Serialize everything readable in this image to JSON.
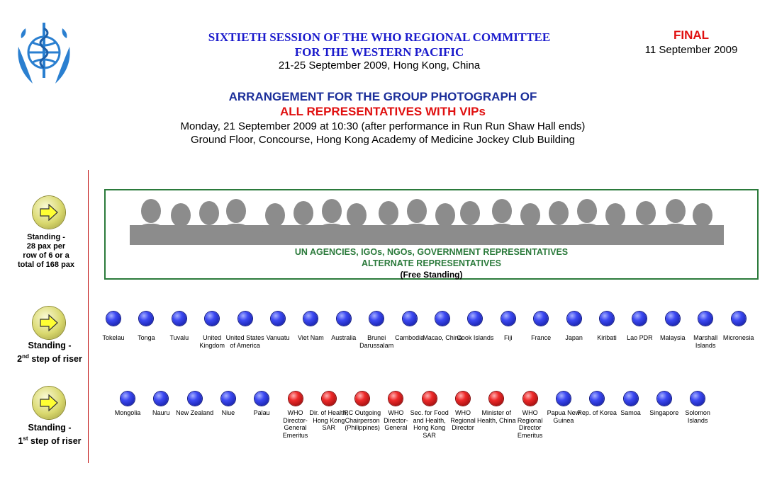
{
  "header": {
    "committee_line1": "SIXTIETH SESSION OF THE WHO REGIONAL COMMITTEE",
    "committee_line2": "FOR THE WESTERN PACIFIC",
    "dates": "21-25 September 2009, Hong Kong, China",
    "final_label": "FINAL",
    "final_date": "11 September 2009"
  },
  "arrangement": {
    "title": "ARRANGEMENT FOR THE GROUP PHOTOGRAPH OF",
    "subtitle": "ALL REPRESENTATIVES WITH VIPs",
    "event_line1": "Monday, 21 September 2009 at 10:30 (after performance in Run Run Shaw Hall ends)",
    "event_line2": "Ground Floor, Concourse, Hong Kong Academy of Medicine Jockey Club Building"
  },
  "colors": {
    "committee_blue": "#1a1acc",
    "title_navy": "#1c2f9a",
    "red": "#e01010",
    "green": "#2b7a3b",
    "country_dot": "#2a36e0",
    "vip_dot": "#e02020"
  },
  "rows": {
    "free_standing": {
      "label_line1": "Standing -",
      "label_line2": "28 pax per",
      "label_line3": "row of 6 or a",
      "label_line4": "total of 168 pax",
      "box_line1": "UN AGENCIES, IGOs, NGOs, GOVERNMENT REPRESENTATIVES",
      "box_line2": "ALTERNATE REPRESENTATIVES",
      "box_line3": "(Free Standing)"
    },
    "second_step": {
      "label_line1": "Standing -",
      "label_step": "2",
      "label_sup": "nd",
      "label_rest": " step of riser",
      "people": [
        {
          "name": "Tokelau",
          "type": "country"
        },
        {
          "name": "Tonga",
          "type": "country"
        },
        {
          "name": "Tuvalu",
          "type": "country"
        },
        {
          "name": "United Kingdom",
          "type": "country"
        },
        {
          "name": "United States of America",
          "type": "country"
        },
        {
          "name": "Vanuatu",
          "type": "country"
        },
        {
          "name": "Viet Nam",
          "type": "country"
        },
        {
          "name": "Australia",
          "type": "country"
        },
        {
          "name": "Brunei Darussalam",
          "type": "country"
        },
        {
          "name": "Cambodia",
          "type": "country"
        },
        {
          "name": "Macao, China",
          "type": "country"
        },
        {
          "name": "Cook Islands",
          "type": "country"
        },
        {
          "name": "Fiji",
          "type": "country"
        },
        {
          "name": "France",
          "type": "country"
        },
        {
          "name": "Japan",
          "type": "country"
        },
        {
          "name": "Kiribati",
          "type": "country"
        },
        {
          "name": "Lao PDR",
          "type": "country"
        },
        {
          "name": "Malaysia",
          "type": "country"
        },
        {
          "name": "Marshall Islands",
          "type": "country"
        },
        {
          "name": "Micronesia",
          "type": "country"
        }
      ]
    },
    "first_step": {
      "label_line1": "Standing -",
      "label_step": "1",
      "label_sup": "st",
      "label_rest": " step of riser",
      "people": [
        {
          "name": "Mongolia",
          "type": "country"
        },
        {
          "name": "Nauru",
          "type": "country"
        },
        {
          "name": "New Zealand",
          "type": "country"
        },
        {
          "name": "Niue",
          "type": "country"
        },
        {
          "name": "Palau",
          "type": "country"
        },
        {
          "name": "WHO Director-General Emeritus",
          "type": "vip"
        },
        {
          "name": "Dir. of Health, Hong Kong SAR",
          "type": "vip"
        },
        {
          "name": "RC Outgoing Chairperson (Philippines)",
          "type": "vip"
        },
        {
          "name": "WHO Director-General",
          "type": "vip"
        },
        {
          "name": "Sec. for Food and Health, Hong Kong SAR",
          "type": "vip"
        },
        {
          "name": "WHO Regional Director",
          "type": "vip"
        },
        {
          "name": "Minister of Health, China",
          "type": "vip"
        },
        {
          "name": "WHO Regional Director Emeritus",
          "type": "vip"
        },
        {
          "name": "Papua New Guinea",
          "type": "country"
        },
        {
          "name": "Rep. of Korea",
          "type": "country"
        },
        {
          "name": "Samoa",
          "type": "country"
        },
        {
          "name": "Singapore",
          "type": "country"
        },
        {
          "name": "Solomon Islands",
          "type": "country"
        }
      ]
    }
  }
}
